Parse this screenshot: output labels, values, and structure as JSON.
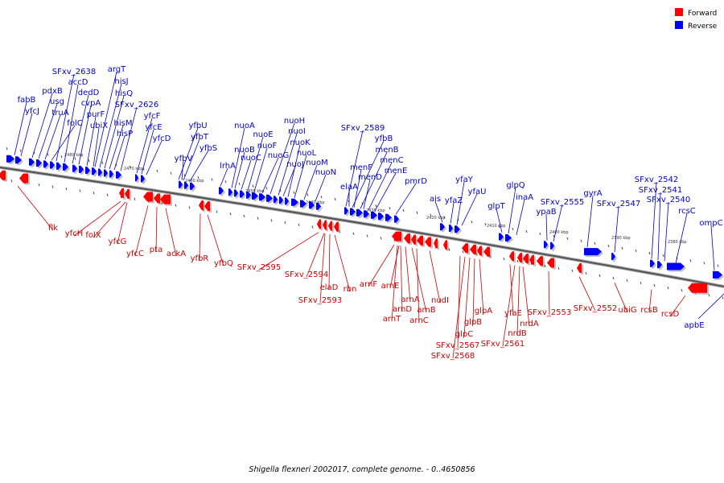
{
  "legend": {
    "forward": {
      "label": "Forward",
      "color": "#ff0000"
    },
    "reverse": {
      "label": "Reverse",
      "color": "#0000ff"
    }
  },
  "caption": "Shigella flexneri 2002017, complete genome. - 0..4650856",
  "kbp_ticks": [
    "2480 kbp",
    "2470 kbp",
    "2460 kbp",
    "2450 kbp",
    "2440 kbp",
    "2430 kbp",
    "2420 kbp",
    "2410 kbp",
    "2400 kbp",
    "2390 kbp",
    "2380 kbp"
  ],
  "reverse_labels": [
    "fabB",
    "yfcJ",
    "pdxB",
    "usg",
    "truA",
    "folC",
    "SFxv_2638",
    "accD",
    "dedD",
    "cvpA",
    "purF",
    "ubiX",
    "argT",
    "hisJ",
    "hisQ",
    "hisM",
    "hisP",
    "SFxv_2626",
    "yfcF",
    "yfcE",
    "yfcD",
    "yfbU",
    "yfbT",
    "yfbS",
    "yfbV",
    "lrhA",
    "nuoA",
    "nuoB",
    "nuoC",
    "nuoE",
    "nuoF",
    "nuoG",
    "nuoH",
    "nuoI",
    "nuoJ",
    "nuoK",
    "nuoL",
    "nuoM",
    "nuoN",
    "SFxv_2589",
    "yfbB",
    "menB",
    "menC",
    "menE",
    "menF",
    "menD",
    "elaA",
    "pmrD",
    "ais",
    "yfaZ",
    "yfaY",
    "yfaU",
    "glpT",
    "glpQ",
    "inaA",
    "ypaB",
    "SFxv_2555",
    "SFxv_2547",
    "gyrA",
    "SFxv_2542",
    "SFxv_2541",
    "SFxv_2540",
    "rcsC",
    "ompC",
    "apbE"
  ],
  "forward_labels": [
    "flk",
    "yfcH",
    "folX",
    "yfcG",
    "yfcC",
    "pta",
    "ackA",
    "yfbR",
    "yfbQ",
    "SFxv_2595",
    "SFxv_2594",
    "elaD",
    "SFxv_2593",
    "rbn",
    "arnF",
    "arnE",
    "arnA",
    "arnD",
    "arnT",
    "arnB",
    "arnC",
    "nudI",
    "glpA",
    "glpB",
    "glpC",
    "SFxv_2567",
    "SFxv_2568",
    "yfaE",
    "nrdA",
    "nrdB",
    "SFxv_2561",
    "SFxv_2553",
    "SFxv_2552",
    "ubiG",
    "rcsB",
    "rcsD"
  ]
}
